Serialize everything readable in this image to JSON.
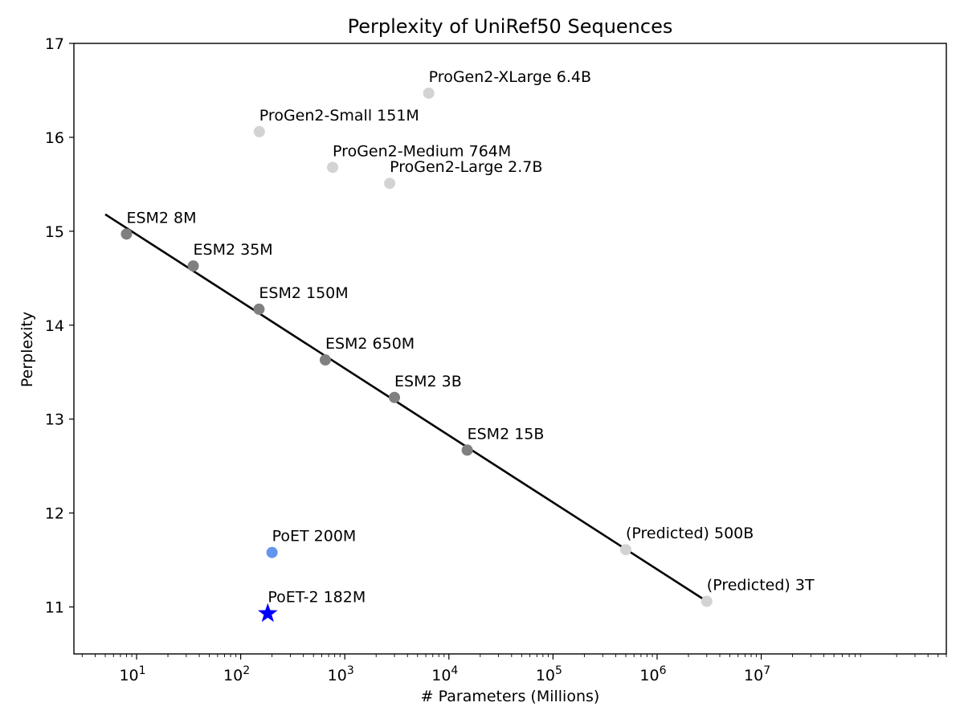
{
  "chart_data": {
    "type": "scatter",
    "title": "Perplexity of UniRef50 Sequences",
    "xlabel": "# Parameters (Millions)",
    "ylabel": "Perplexity",
    "xscale": "log",
    "xlim": [
      2.5,
      600000000
    ],
    "ylim": [
      10.5,
      17
    ],
    "x_ticks": [
      {
        "value": 10,
        "label": "10",
        "exp": "1"
      },
      {
        "value": 100,
        "label": "10",
        "exp": "2"
      },
      {
        "value": 1000,
        "label": "10",
        "exp": "3"
      },
      {
        "value": 10000,
        "label": "10",
        "exp": "4"
      },
      {
        "value": 100000,
        "label": "10",
        "exp": "5"
      },
      {
        "value": 1000000,
        "label": "10",
        "exp": "6"
      },
      {
        "value": 10000000,
        "label": "10",
        "exp": "7"
      }
    ],
    "y_ticks": [
      11,
      12,
      13,
      14,
      15,
      16,
      17
    ],
    "colors": {
      "esm": "#808080",
      "progen": "#d3d3d3",
      "predicted": "#d3d3d3",
      "poet": "#6495ed",
      "poet2": "#0000ff",
      "fit_line": "#000000"
    },
    "series": [
      {
        "name": "ESM2",
        "color_key": "esm",
        "marker": "circle",
        "points": [
          {
            "x": 8,
            "y": 14.97,
            "label": "ESM2 8M"
          },
          {
            "x": 35,
            "y": 14.63,
            "label": "ESM2 35M"
          },
          {
            "x": 150,
            "y": 14.17,
            "label": "ESM2 150M"
          },
          {
            "x": 650,
            "y": 13.63,
            "label": "ESM2 650M"
          },
          {
            "x": 3000,
            "y": 13.23,
            "label": "ESM2 3B"
          },
          {
            "x": 15000,
            "y": 12.67,
            "label": "ESM2 15B"
          }
        ]
      },
      {
        "name": "ProGen2",
        "color_key": "progen",
        "marker": "circle",
        "points": [
          {
            "x": 151,
            "y": 16.06,
            "label": "ProGen2-Small 151M"
          },
          {
            "x": 764,
            "y": 15.68,
            "label": "ProGen2-Medium 764M"
          },
          {
            "x": 2700,
            "y": 15.51,
            "label": "ProGen2-Large 2.7B"
          },
          {
            "x": 6400,
            "y": 16.47,
            "label": "ProGen2-XLarge 6.4B"
          }
        ]
      },
      {
        "name": "Predicted",
        "color_key": "predicted",
        "marker": "circle",
        "points": [
          {
            "x": 500000,
            "y": 11.61,
            "label": "(Predicted) 500B"
          },
          {
            "x": 3000000,
            "y": 11.06,
            "label": "(Predicted) 3T"
          }
        ]
      },
      {
        "name": "PoET",
        "color_key": "poet",
        "marker": "circle",
        "points": [
          {
            "x": 200,
            "y": 11.58,
            "label": "PoET 200M"
          }
        ]
      },
      {
        "name": "PoET-2",
        "color_key": "poet2",
        "marker": "star",
        "points": [
          {
            "x": 182,
            "y": 10.93,
            "label": "PoET-2 182M"
          }
        ]
      }
    ],
    "fit_line": {
      "x": [
        5,
        3000000
      ],
      "y": [
        15.18,
        11.06
      ]
    }
  }
}
